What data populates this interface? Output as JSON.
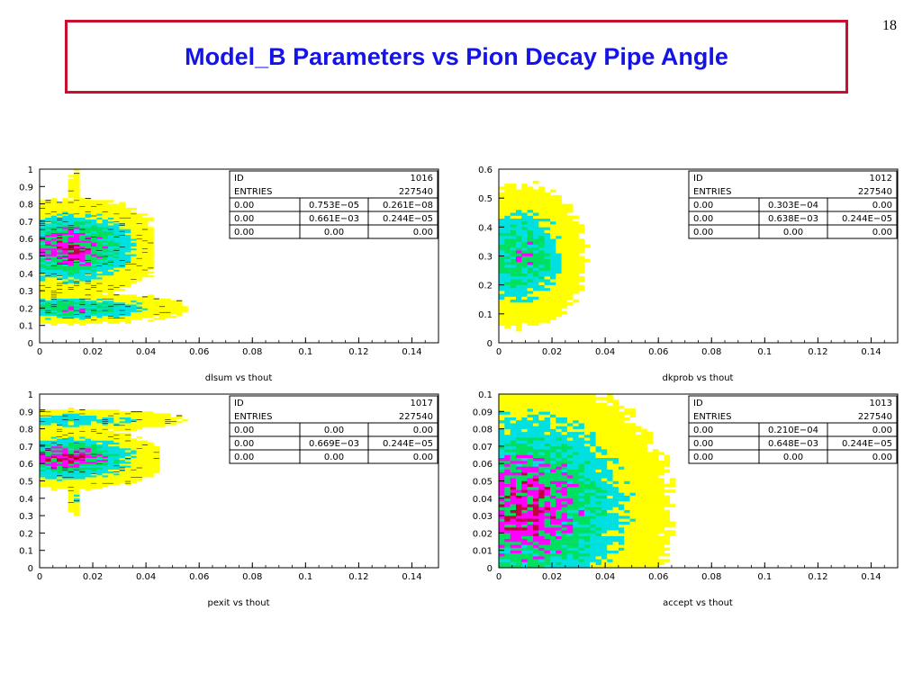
{
  "slide": {
    "page_number": "18",
    "title": "Model_B Parameters vs Pion Decay Pipe Angle"
  },
  "colors": {
    "title_text": "#1414e6",
    "title_border": "#c8102e",
    "density_levels": [
      "#ffff00",
      "#00e0e0",
      "#00e060",
      "#ff00ff",
      "#c00040"
    ]
  },
  "chart_data": [
    {
      "id": "plot-dlsum",
      "type": "heatmap",
      "style": "contour",
      "xlabel": "dlsum vs thout",
      "xlim": [
        0,
        0.15
      ],
      "ylim": [
        0,
        1
      ],
      "x_ticks": [
        "0",
        "0.02",
        "0.04",
        "0.06",
        "0.08",
        "0.1",
        "0.12",
        "0.14"
      ],
      "y_ticks": [
        "0",
        "0.1",
        "0.2",
        "0.3",
        "0.4",
        "0.5",
        "0.6",
        "0.7",
        "0.8",
        "0.9",
        "1"
      ],
      "x_tick_values": [
        0,
        0.02,
        0.04,
        0.06,
        0.08,
        0.1,
        0.12,
        0.14
      ],
      "y_tick_values": [
        0,
        0.1,
        0.2,
        0.3,
        0.4,
        0.5,
        0.6,
        0.7,
        0.8,
        0.9,
        1
      ],
      "stats": {
        "id_label": "ID",
        "id": "1016",
        "entries_label": "ENTRIES",
        "entries": "227540",
        "rows": [
          [
            "0.00",
            "0.753E−05",
            "0.261E−08"
          ],
          [
            "0.00",
            "0.661E−03",
            "0.244E−05"
          ],
          [
            "0.00",
            "0.00",
            "0.00"
          ]
        ]
      },
      "blobs": [
        {
          "x": 0.012,
          "y": 0.55,
          "sx": 0.016,
          "sy": 0.13,
          "xmax": 0.042,
          "level": 4
        },
        {
          "x": 0.01,
          "y": 0.2,
          "sx": 0.022,
          "sy": 0.045,
          "xmax": 0.055,
          "level": 3
        },
        {
          "x": 0.013,
          "y": 0.89,
          "sx": 0.001,
          "sy": 0.09,
          "xmax": 0.014,
          "level": 1
        }
      ]
    },
    {
      "id": "plot-dkprob",
      "type": "heatmap",
      "style": "boxes",
      "xlabel": "dkprob vs thout",
      "xlim": [
        0,
        0.15
      ],
      "ylim": [
        0,
        0.6
      ],
      "x_ticks": [
        "0",
        "0.02",
        "0.04",
        "0.06",
        "0.08",
        "0.1",
        "0.12",
        "0.14"
      ],
      "y_ticks": [
        "0",
        "0.1",
        "0.2",
        "0.3",
        "0.4",
        "0.5",
        "0.6"
      ],
      "x_tick_values": [
        0,
        0.02,
        0.04,
        0.06,
        0.08,
        0.1,
        0.12,
        0.14
      ],
      "y_tick_values": [
        0,
        0.1,
        0.2,
        0.3,
        0.4,
        0.5,
        0.6
      ],
      "stats": {
        "id_label": "ID",
        "id": "1012",
        "entries_label": "ENTRIES",
        "entries": "227540",
        "rows": [
          [
            "0.00",
            "0.303E−04",
            "0.00"
          ],
          [
            "0.00",
            "0.638E−03",
            "0.244E−05"
          ],
          [
            "0.00",
            "0.00",
            "0.00"
          ]
        ]
      },
      "blobs": [
        {
          "x": 0.008,
          "y": 0.3,
          "sx": 0.012,
          "sy": 0.12,
          "xmax": 0.036,
          "level": 3
        }
      ]
    },
    {
      "id": "plot-pexit",
      "type": "heatmap",
      "style": "contour",
      "xlabel": "pexit vs thout",
      "xlim": [
        0,
        0.15
      ],
      "ylim": [
        0,
        1
      ],
      "x_ticks": [
        "0",
        "0.02",
        "0.04",
        "0.06",
        "0.08",
        "0.1",
        "0.12",
        "0.14"
      ],
      "y_ticks": [
        "0",
        "0.1",
        "0.2",
        "0.3",
        "0.4",
        "0.5",
        "0.6",
        "0.7",
        "0.8",
        "0.9",
        "1"
      ],
      "x_tick_values": [
        0,
        0.02,
        0.04,
        0.06,
        0.08,
        0.1,
        0.12,
        0.14
      ],
      "y_tick_values": [
        0,
        0.1,
        0.2,
        0.3,
        0.4,
        0.5,
        0.6,
        0.7,
        0.8,
        0.9,
        1
      ],
      "stats": {
        "id_label": "ID",
        "id": "1017",
        "entries_label": "ENTRIES",
        "entries": "227540",
        "rows": [
          [
            "0.00",
            "0.00",
            "0.00"
          ],
          [
            "0.00",
            "0.669E−03",
            "0.244E−05"
          ],
          [
            "0.00",
            "0.00",
            "0.00"
          ]
        ]
      },
      "blobs": [
        {
          "x": 0.012,
          "y": 0.85,
          "sx": 0.022,
          "sy": 0.035,
          "xmax": 0.055,
          "level": 2
        },
        {
          "x": 0.01,
          "y": 0.63,
          "sx": 0.017,
          "sy": 0.08,
          "xmax": 0.045,
          "level": 4
        },
        {
          "x": 0.013,
          "y": 0.4,
          "sx": 0.001,
          "sy": 0.06,
          "xmax": 0.014,
          "level": 2
        }
      ]
    },
    {
      "id": "plot-accept",
      "type": "heatmap",
      "style": "boxes",
      "xlabel": "accept vs thout",
      "xlim": [
        0,
        0.15
      ],
      "ylim": [
        0,
        0.1
      ],
      "x_ticks": [
        "0",
        "0.02",
        "0.04",
        "0.06",
        "0.08",
        "0.1",
        "0.12",
        "0.14"
      ],
      "y_ticks": [
        "0",
        "0.01",
        "0.02",
        "0.03",
        "0.04",
        "0.05",
        "0.06",
        "0.07",
        "0.08",
        "0.09",
        "0.1"
      ],
      "x_tick_values": [
        0,
        0.02,
        0.04,
        0.06,
        0.08,
        0.1,
        0.12,
        0.14
      ],
      "y_tick_values": [
        0,
        0.01,
        0.02,
        0.03,
        0.04,
        0.05,
        0.06,
        0.07,
        0.08,
        0.09,
        0.1
      ],
      "stats": {
        "id_label": "ID",
        "id": "1013",
        "entries_label": "ENTRIES",
        "entries": "227540",
        "rows": [
          [
            "0.00",
            "0.210E−04",
            "0.00"
          ],
          [
            "0.00",
            "0.648E−03",
            "0.244E−05"
          ],
          [
            "0.00",
            "0.00",
            "0.00"
          ]
        ]
      },
      "blobs": [
        {
          "x": 0.01,
          "y": 0.035,
          "sx": 0.025,
          "sy": 0.035,
          "xmax": 0.088,
          "level": 4
        }
      ]
    }
  ]
}
